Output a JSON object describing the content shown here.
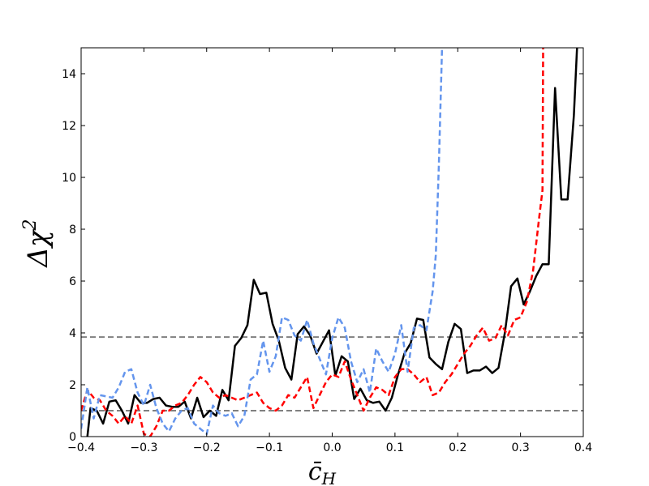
{
  "chart_data": {
    "type": "line",
    "xlabel": "c̄",
    "xlabel_sub": "H",
    "ylabel": "Δχ",
    "ylabel_sup": "2",
    "xlim": [
      -0.4,
      0.4
    ],
    "ylim": [
      0,
      15
    ],
    "xticks": [
      -0.4,
      -0.3,
      -0.2,
      -0.1,
      0.0,
      0.1,
      0.2,
      0.3,
      0.4
    ],
    "xtick_labels": [
      "−0.4",
      "−0.3",
      "−0.2",
      "−0.1",
      "0.0",
      "0.1",
      "0.2",
      "0.3",
      "0.4"
    ],
    "yticks": [
      0,
      2,
      4,
      6,
      8,
      10,
      12,
      14
    ],
    "ytick_labels": [
      "0",
      "2",
      "4",
      "6",
      "8",
      "10",
      "12",
      "14"
    ],
    "grid": false,
    "hlines": [
      {
        "y": 1.0,
        "color": "#808080",
        "style": "dashed"
      },
      {
        "y": 3.84,
        "color": "#808080",
        "style": "dashed"
      }
    ],
    "series": [
      {
        "color": "#000000",
        "style": "solid",
        "x": [
          -0.39,
          -0.385,
          -0.375,
          -0.365,
          -0.355,
          -0.345,
          -0.335,
          -0.325,
          -0.315,
          -0.305,
          -0.295,
          -0.285,
          -0.275,
          -0.265,
          -0.255,
          -0.245,
          -0.235,
          -0.225,
          -0.215,
          -0.205,
          -0.195,
          -0.185,
          -0.175,
          -0.165,
          -0.155,
          -0.145,
          -0.135,
          -0.125,
          -0.115,
          -0.105,
          -0.095,
          -0.085,
          -0.075,
          -0.065,
          -0.055,
          -0.045,
          -0.035,
          -0.025,
          -0.015,
          -0.005,
          0.005,
          0.015,
          0.025,
          0.035,
          0.045,
          0.055,
          0.065,
          0.075,
          0.085,
          0.095,
          0.105,
          0.115,
          0.125,
          0.135,
          0.145,
          0.155,
          0.165,
          0.175,
          0.185,
          0.195,
          0.205,
          0.215,
          0.225,
          0.235,
          0.245,
          0.255,
          0.265,
          0.275,
          0.285,
          0.295,
          0.305,
          0.315,
          0.325,
          0.335,
          0.345,
          0.355,
          0.365,
          0.375,
          0.385,
          0.39
        ],
        "values": [
          0,
          1.1,
          1.0,
          0.5,
          1.35,
          1.4,
          1.0,
          0.5,
          1.6,
          1.3,
          1.3,
          1.45,
          1.5,
          1.2,
          1.15,
          1.15,
          1.35,
          0.7,
          1.5,
          0.75,
          1.0,
          0.8,
          1.8,
          1.4,
          3.5,
          3.8,
          4.3,
          6.05,
          5.5,
          5.55,
          4.35,
          3.7,
          2.65,
          2.2,
          3.95,
          4.25,
          3.9,
          3.2,
          3.65,
          4.1,
          2.35,
          3.1,
          2.9,
          1.45,
          1.85,
          1.4,
          1.3,
          1.35,
          1.0,
          1.5,
          2.4,
          3.2,
          3.6,
          4.55,
          4.5,
          3.05,
          2.8,
          2.6,
          3.65,
          4.35,
          4.15,
          2.45,
          2.55,
          2.55,
          2.7,
          2.45,
          2.65,
          4.0,
          5.8,
          6.1,
          5.1,
          5.6,
          6.2,
          6.65,
          6.65,
          13.45,
          9.15,
          9.15,
          12.4,
          15
        ]
      },
      {
        "color": "#ff0000",
        "style": "dashed",
        "x": [
          -0.4,
          -0.39,
          -0.38,
          -0.37,
          -0.36,
          -0.35,
          -0.34,
          -0.33,
          -0.32,
          -0.31,
          -0.3,
          -0.29,
          -0.28,
          -0.27,
          -0.26,
          -0.25,
          -0.24,
          -0.23,
          -0.22,
          -0.21,
          -0.2,
          -0.19,
          -0.18,
          -0.17,
          -0.16,
          -0.15,
          -0.14,
          -0.13,
          -0.12,
          -0.11,
          -0.1,
          -0.09,
          -0.08,
          -0.07,
          -0.06,
          -0.05,
          -0.04,
          -0.03,
          -0.02,
          -0.01,
          0.0,
          0.01,
          0.02,
          0.03,
          0.04,
          0.05,
          0.06,
          0.07,
          0.08,
          0.09,
          0.1,
          0.11,
          0.12,
          0.13,
          0.14,
          0.15,
          0.16,
          0.17,
          0.18,
          0.19,
          0.2,
          0.21,
          0.22,
          0.23,
          0.24,
          0.25,
          0.26,
          0.27,
          0.28,
          0.29,
          0.3,
          0.31,
          0.32,
          0.33,
          0.335,
          0.336
        ],
        "values": [
          1.0,
          1.8,
          1.5,
          1.4,
          1.0,
          0.8,
          0.5,
          0.8,
          0.5,
          1.2,
          0.1,
          0.0,
          0.4,
          1.0,
          1.0,
          1.2,
          1.3,
          1.6,
          2.0,
          2.3,
          2.1,
          1.7,
          1.5,
          1.6,
          1.5,
          1.4,
          1.5,
          1.6,
          1.7,
          1.3,
          1.1,
          1.0,
          1.2,
          1.6,
          1.5,
          1.9,
          2.3,
          1.1,
          1.6,
          2.1,
          2.4,
          2.3,
          2.9,
          2.2,
          1.6,
          1.0,
          1.5,
          1.9,
          1.8,
          1.6,
          2.3,
          2.6,
          2.6,
          2.4,
          2.1,
          2.3,
          1.6,
          1.7,
          2.1,
          2.4,
          2.8,
          3.2,
          3.5,
          3.9,
          4.2,
          3.7,
          3.8,
          4.3,
          3.9,
          4.5,
          4.6,
          5.2,
          6.4,
          8.5,
          9.5,
          15
        ]
      },
      {
        "color": "#6495ed",
        "style": "dashed",
        "x": [
          -0.4,
          -0.39,
          -0.38,
          -0.37,
          -0.36,
          -0.35,
          -0.34,
          -0.33,
          -0.32,
          -0.31,
          -0.3,
          -0.29,
          -0.28,
          -0.27,
          -0.26,
          -0.25,
          -0.24,
          -0.23,
          -0.22,
          -0.21,
          -0.2,
          -0.19,
          -0.18,
          -0.17,
          -0.16,
          -0.15,
          -0.14,
          -0.13,
          -0.12,
          -0.11,
          -0.1,
          -0.09,
          -0.08,
          -0.07,
          -0.06,
          -0.05,
          -0.04,
          -0.03,
          -0.02,
          -0.01,
          0.0,
          0.01,
          0.02,
          0.03,
          0.04,
          0.05,
          0.06,
          0.07,
          0.08,
          0.09,
          0.1,
          0.11,
          0.12,
          0.13,
          0.14,
          0.15,
          0.16,
          0.165,
          0.17,
          0.175
        ],
        "values": [
          0.3,
          1.9,
          0.7,
          1.6,
          1.55,
          1.5,
          1.9,
          2.5,
          2.6,
          1.7,
          1.2,
          2.0,
          1.1,
          0.5,
          0.2,
          0.7,
          1.0,
          1.1,
          0.5,
          0.3,
          0.1,
          1.2,
          0.9,
          0.8,
          0.9,
          0.4,
          0.8,
          2.2,
          2.4,
          3.7,
          2.5,
          3.1,
          4.6,
          4.5,
          3.9,
          3.7,
          4.5,
          3.6,
          3.0,
          2.4,
          3.8,
          4.6,
          4.2,
          2.9,
          2.1,
          2.6,
          1.7,
          3.4,
          2.9,
          2.5,
          3.2,
          4.3,
          2.5,
          4.2,
          4.3,
          4.1,
          5.6,
          7.0,
          10.5,
          15
        ]
      }
    ]
  }
}
